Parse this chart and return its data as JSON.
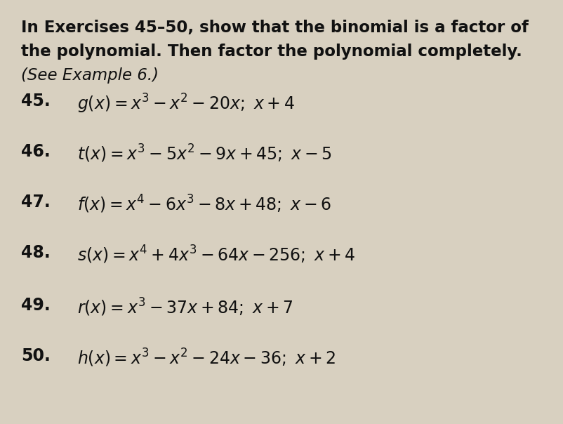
{
  "background_color": "#d8d0c0",
  "text_color": "#111111",
  "header_line1": "In Exercises 45–50, show that the binomial is a factor of",
  "header_line2": "the polynomial. Then factor the polynomial completely.",
  "header_italic": "(See Example 6.)",
  "exercises": [
    {
      "num": "45.",
      "expr": "$g(x) = x^3 - x^2 - 20x;\\  x + 4$"
    },
    {
      "num": "46.",
      "expr": "$t(x) = x^3 - 5x^2 - 9x + 45;\\  x - 5$"
    },
    {
      "num": "47.",
      "expr": "$f(x) = x^4 - 6x^3 - 8x + 48;\\  x - 6$"
    },
    {
      "num": "48.",
      "expr": "$s(x) = x^4 + 4x^3 - 64x - 256;\\  x + 4$"
    },
    {
      "num": "49.",
      "expr": "$r(x) = x^3 - 37x + 84;\\  x + 7$"
    },
    {
      "num": "50.",
      "expr": "$h(x) = x^3 - x^2 - 24x - 36;\\  x + 2$"
    }
  ],
  "figsize": [
    8.03,
    6.04
  ],
  "dpi": 100,
  "header_fontsize": 16.5,
  "num_fontsize": 17,
  "expr_fontsize": 17
}
